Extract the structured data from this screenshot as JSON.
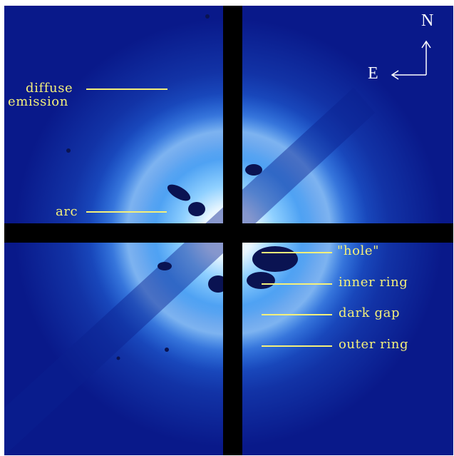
{
  "image": {
    "subject": "coronagraphic image",
    "colors": {
      "background": "#09198a",
      "glow_inner": "#ffffff",
      "glow_mid": "#4fb0ff",
      "occulting_bars": "#000000",
      "label": "#f4f07a",
      "compass": "#ffffff"
    }
  },
  "compass": {
    "north_label": "N",
    "east_label": "E"
  },
  "annotations": {
    "diffuse_line1": "diffuse",
    "diffuse_line2": "emission",
    "arc": "arc",
    "hole": "\"hole\"",
    "inner_ring": "inner ring",
    "dark_gap": "dark gap",
    "outer_ring": "outer ring"
  }
}
